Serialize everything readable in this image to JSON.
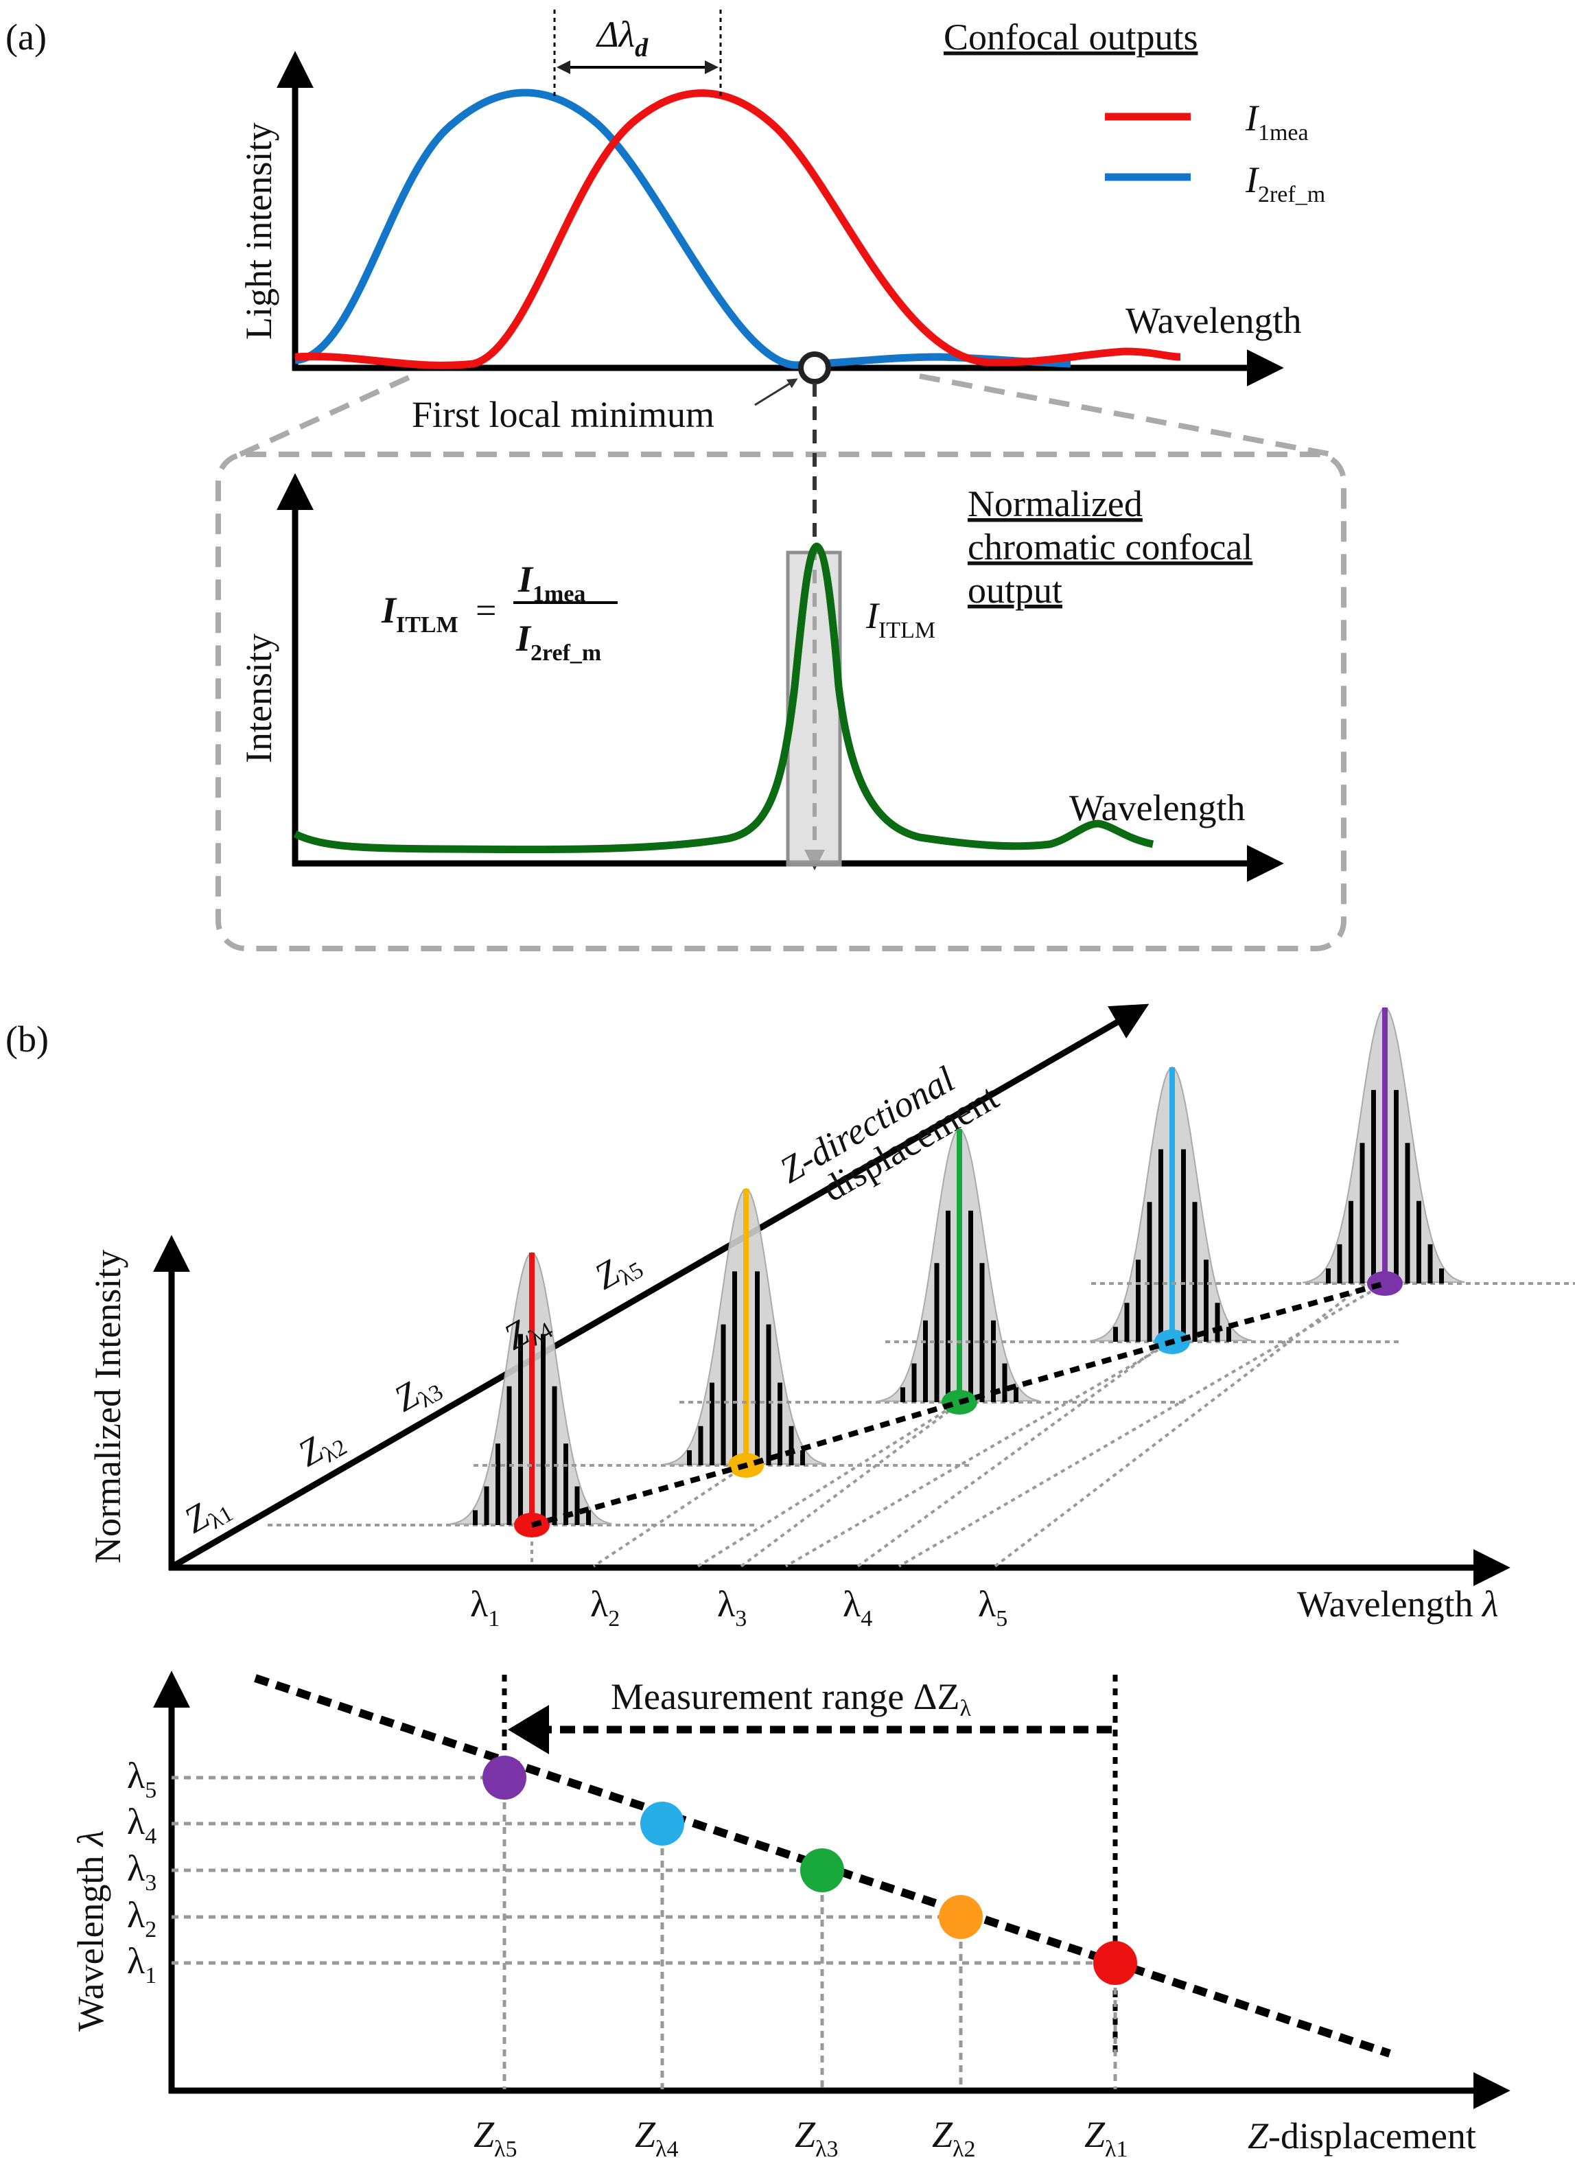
{
  "colors": {
    "red": "#ee1111",
    "blue": "#1476c8",
    "green": "#0b6b12",
    "gray": "#9c9c9c",
    "yellow": "#f7b500",
    "orange": "#ff9a1a",
    "violet": "#7b33a8",
    "cyan": "#27aee8",
    "lime": "#19a83c"
  },
  "panel_a": {
    "label": "(a)",
    "ylabel": "Light intensity",
    "xlabel": "Wavelength",
    "delta": {
      "main": "Δλ",
      "sub": "d"
    },
    "legend": {
      "title": "Confocal outputs",
      "red_main": "I",
      "red_sub": "1mea",
      "blue_main": "I",
      "blue_sub": "2ref_m"
    },
    "minimum_label": "First local minimum"
  },
  "panel_a_inset": {
    "ylabel": "Intensity",
    "xlabel": "Wavelength",
    "formula": {
      "lhs_main": "I",
      "lhs_sub": "ITLM",
      "equals": "=",
      "num_main": "I",
      "num_sub": "1mea",
      "den_main": "I",
      "den_sub": "2ref_m"
    },
    "curve": {
      "main": "I",
      "sub": "ITLM"
    },
    "title_lines": [
      "Normalized",
      "chromatic confocal",
      "output"
    ]
  },
  "panel_b": {
    "label": "(b)",
    "ylabel": "Normalized Intensity",
    "xlabel": "Wavelength λ",
    "diag_label_line1": "Z-directional",
    "diag_label_line2": "displacement",
    "z_labels": [
      {
        "main": "Z",
        "sub": "λ1"
      },
      {
        "main": "Z",
        "sub": "λ2"
      },
      {
        "main": "Z",
        "sub": "λ3"
      },
      {
        "main": "Z",
        "sub": "λ4"
      },
      {
        "main": "Z",
        "sub": "λ5"
      }
    ],
    "lambda_ticks": [
      {
        "main": "λ",
        "sub": "1"
      },
      {
        "main": "λ",
        "sub": "2"
      },
      {
        "main": "λ",
        "sub": "3"
      },
      {
        "main": "λ",
        "sub": "4"
      },
      {
        "main": "λ",
        "sub": "5"
      }
    ]
  },
  "panel_b_lower": {
    "ylabel": "Wavelength λ",
    "xlabel": "Z-displacement",
    "range_label": "Measurement range ΔZ",
    "range_sub": "λ",
    "y_ticks": [
      {
        "main": "λ",
        "sub": "5"
      },
      {
        "main": "λ",
        "sub": "4"
      },
      {
        "main": "λ",
        "sub": "3"
      },
      {
        "main": "λ",
        "sub": "2"
      },
      {
        "main": "λ",
        "sub": "1"
      }
    ],
    "x_ticks": [
      {
        "main": "Z",
        "sub": "λ5"
      },
      {
        "main": "Z",
        "sub": "λ4"
      },
      {
        "main": "Z",
        "sub": "λ3"
      },
      {
        "main": "Z",
        "sub": "λ2"
      },
      {
        "main": "Z",
        "sub": "λ1"
      }
    ]
  }
}
